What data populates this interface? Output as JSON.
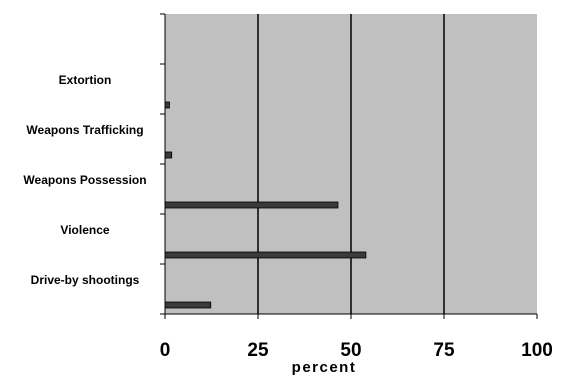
{
  "chart_data": {
    "type": "bar",
    "orientation": "horizontal",
    "categories": [
      "Extortion",
      "Weapons Trafficking",
      "Weapons Possession",
      "Violence",
      "Drive-by shootings"
    ],
    "values": [
      1.2,
      1.8,
      46.5,
      54,
      12.3
    ],
    "xlabel": "percent",
    "xlim": [
      0,
      100
    ],
    "xticks": [
      "0",
      "25",
      "50",
      "75",
      "100"
    ],
    "grid": true,
    "colors": {
      "plot_bg": "#c0c0c0",
      "bar": "#3a3a3a",
      "gridline": "#000000"
    }
  }
}
